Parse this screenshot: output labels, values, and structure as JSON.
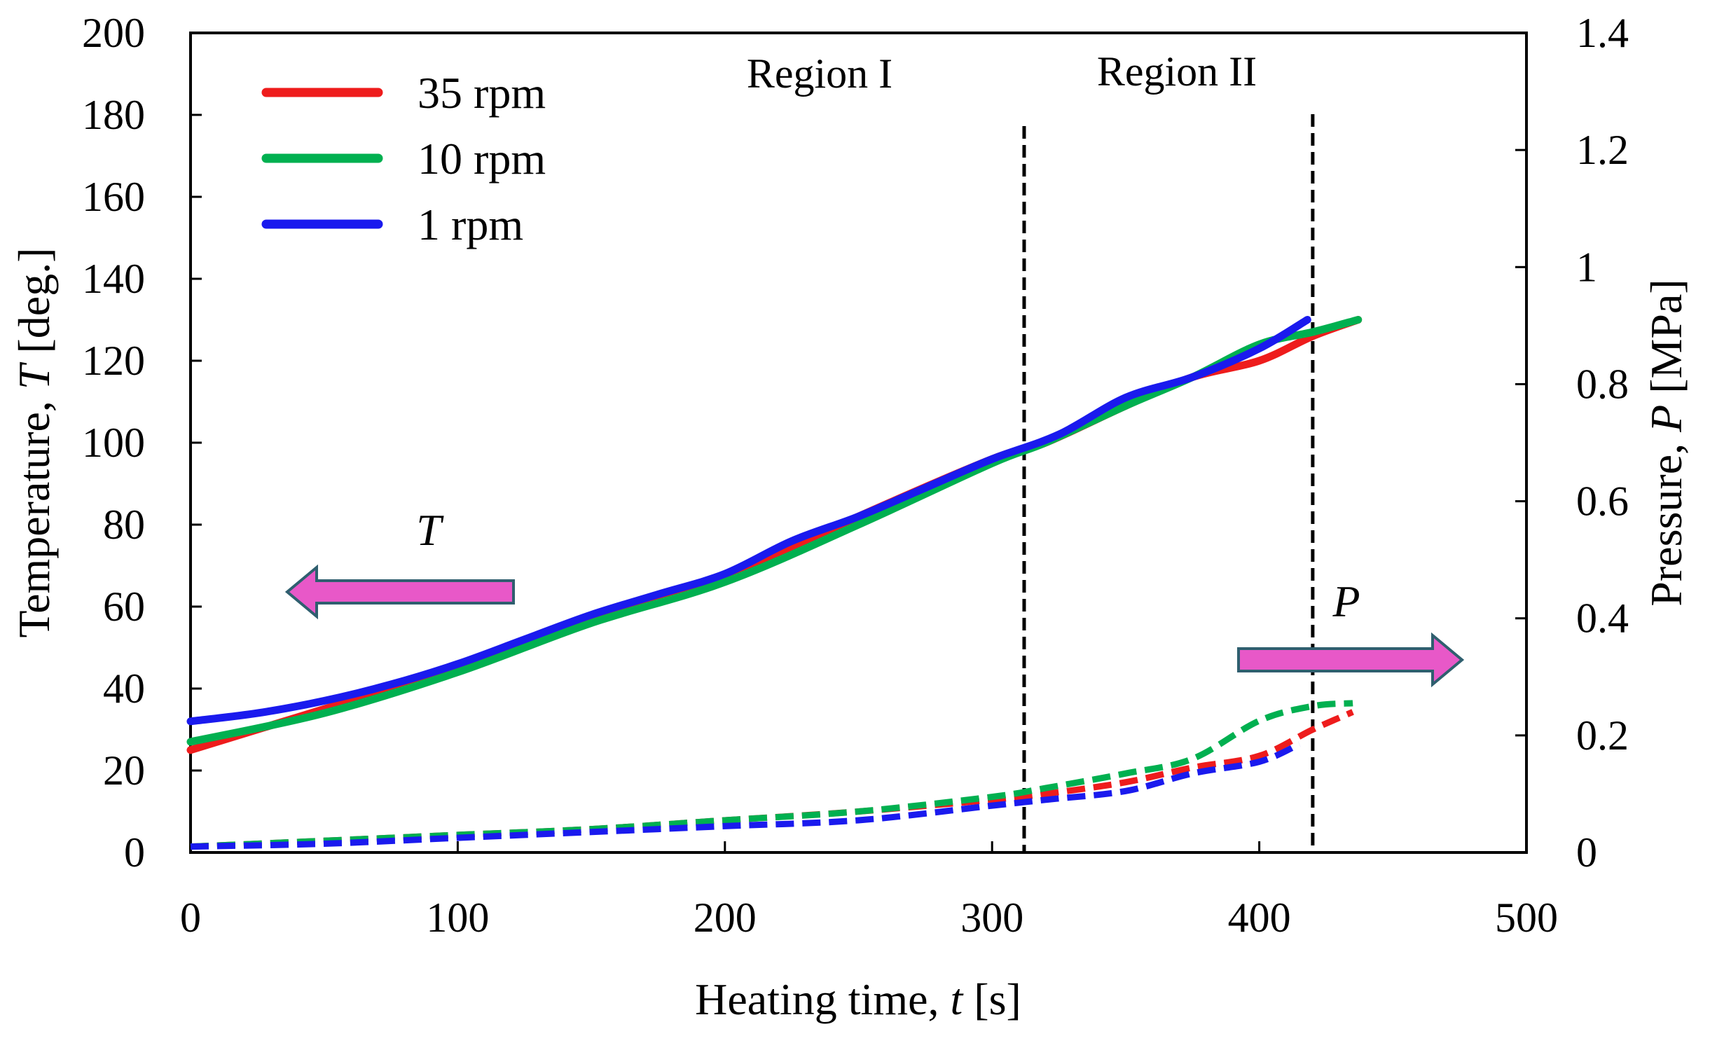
{
  "chart_data": {
    "type": "line",
    "x_axis": {
      "label_prefix": "Heating time, ",
      "label_var": "t",
      "label_unit": " [s]",
      "range": [
        0,
        500
      ],
      "ticks": [
        0,
        100,
        200,
        300,
        400,
        500
      ],
      "tick_labels": [
        "0",
        "100",
        "200",
        "300",
        "400",
        "500"
      ]
    },
    "y_axis_left": {
      "label_prefix": "Temperature, ",
      "label_var": "T",
      "label_unit": " [deg.]",
      "range": [
        0,
        200
      ],
      "ticks": [
        0,
        20,
        40,
        60,
        80,
        100,
        120,
        140,
        160,
        180,
        200
      ],
      "tick_labels": [
        "0",
        "20",
        "40",
        "60",
        "80",
        "100",
        "120",
        "140",
        "160",
        "180",
        "200"
      ]
    },
    "y_axis_right": {
      "label_prefix": "Pressure, ",
      "label_var": "P",
      "label_unit": " [MPa]",
      "range": [
        0,
        1.4
      ],
      "ticks": [
        0,
        0.2,
        0.4,
        0.6,
        0.8,
        1.0,
        1.2,
        1.4
      ],
      "tick_labels": [
        "0",
        "0.2",
        "0.4",
        "0.6",
        "0.8",
        "1",
        "1.2",
        "1.4"
      ]
    },
    "grid": false,
    "legend_position": "top-left",
    "legend": [
      {
        "label": "35 rpm",
        "color": "#ee1c1c"
      },
      {
        "label": "10 rpm",
        "color": "#00b050"
      },
      {
        "label": "1 rpm",
        "color": "#1a1aee"
      }
    ],
    "vertical_lines": [
      312,
      420
    ],
    "regions": [
      {
        "label": "Region I",
        "x_center": 234
      },
      {
        "label": "Region II",
        "x_center": 368
      }
    ],
    "arrows": [
      {
        "label": "T",
        "direction": "left",
        "axis": "left",
        "color": "#e858c8"
      },
      {
        "label": "P",
        "direction": "right",
        "axis": "right",
        "color": "#e858c8"
      }
    ],
    "temperature_series": [
      {
        "name": "35 rpm",
        "color": "#ee1c1c",
        "axis": "left",
        "x": [
          0,
          50,
          100,
          150,
          200,
          250,
          300,
          320,
          350,
          375,
          400,
          420,
          437
        ],
        "y": [
          25,
          35,
          45,
          57,
          67,
          82,
          96,
          100,
          109,
          116,
          120,
          126,
          130
        ]
      },
      {
        "name": "10 rpm",
        "color": "#00b050",
        "axis": "left",
        "x": [
          0,
          50,
          100,
          150,
          200,
          250,
          300,
          320,
          350,
          375,
          400,
          420,
          437
        ],
        "y": [
          27,
          34,
          44,
          56,
          66,
          80,
          95,
          100,
          109,
          116,
          124,
          127,
          130
        ]
      },
      {
        "name": "1 rpm",
        "color": "#1a1aee",
        "axis": "left",
        "x": [
          0,
          25,
          50,
          75,
          100,
          125,
          150,
          175,
          200,
          225,
          250,
          275,
          300,
          325,
          350,
          375,
          400,
          418
        ],
        "y": [
          32,
          34,
          37,
          41,
          46,
          52,
          58,
          63,
          68,
          76,
          82,
          89,
          96,
          102,
          111,
          116,
          123,
          130
        ]
      }
    ],
    "pressure_series": [
      {
        "name": "35 rpm",
        "color": "#ee1c1c",
        "axis": "right",
        "x": [
          0,
          50,
          100,
          150,
          200,
          250,
          300,
          320,
          350,
          375,
          400,
          420,
          435
        ],
        "y": [
          0.01,
          0.02,
          0.03,
          0.04,
          0.055,
          0.07,
          0.09,
          0.1,
          0.12,
          0.145,
          0.165,
          0.21,
          0.24
        ]
      },
      {
        "name": "10 rpm",
        "color": "#00b050",
        "axis": "right",
        "x": [
          0,
          50,
          100,
          150,
          200,
          250,
          300,
          320,
          350,
          375,
          400,
          420,
          435
        ],
        "y": [
          0.01,
          0.02,
          0.03,
          0.04,
          0.055,
          0.07,
          0.095,
          0.11,
          0.135,
          0.16,
          0.225,
          0.25,
          0.255
        ]
      },
      {
        "name": "1 rpm",
        "color": "#1a1aee",
        "axis": "right",
        "x": [
          0,
          50,
          100,
          150,
          200,
          250,
          300,
          320,
          350,
          375,
          400,
          415
        ],
        "y": [
          0.01,
          0.015,
          0.025,
          0.035,
          0.045,
          0.055,
          0.08,
          0.09,
          0.105,
          0.135,
          0.155,
          0.185
        ]
      }
    ]
  }
}
